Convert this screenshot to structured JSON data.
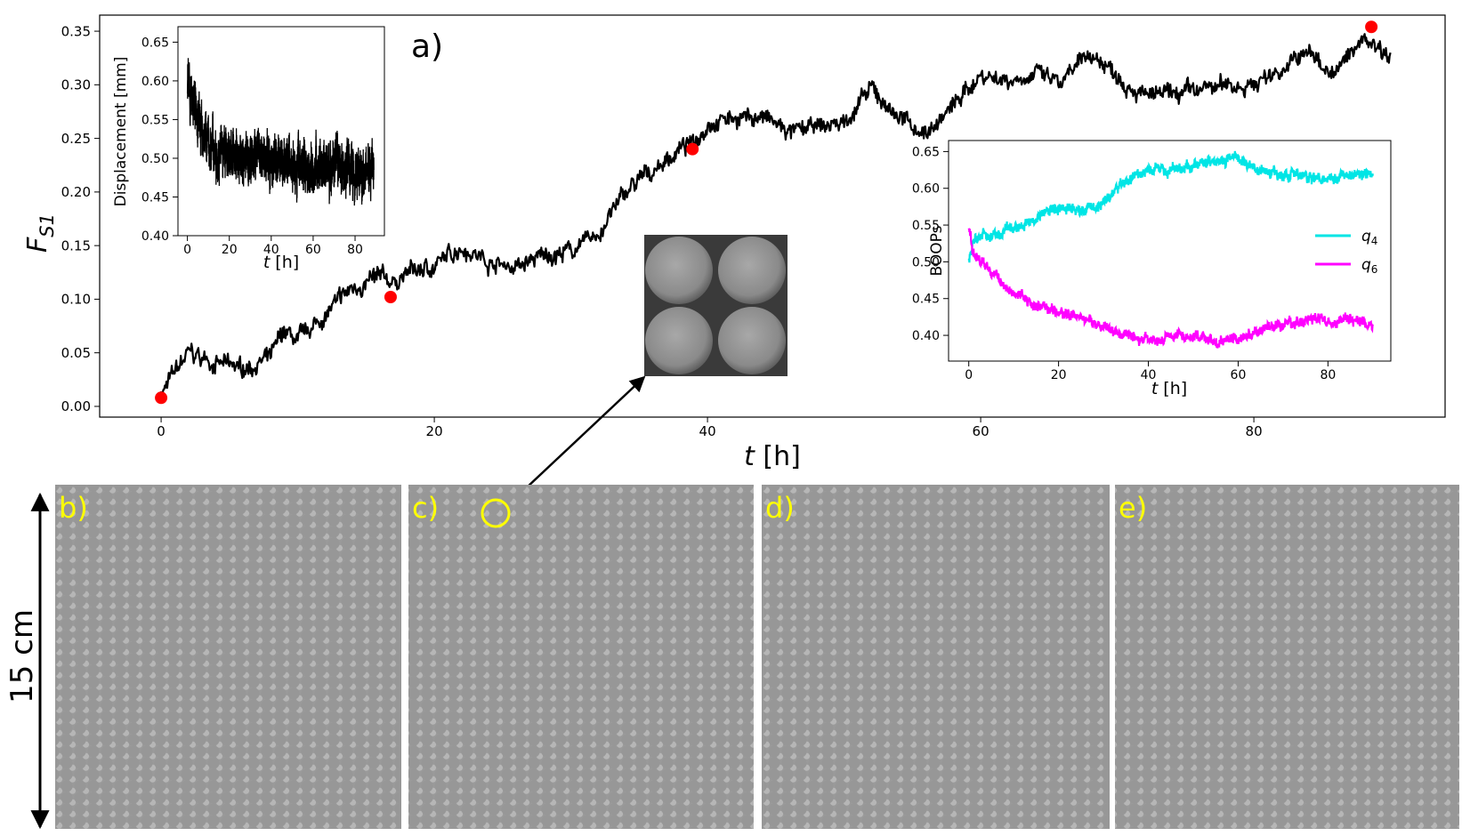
{
  "chart_data": [
    {
      "id": "main",
      "type": "line",
      "panel_label": "a)",
      "title": "",
      "xlabel_var": "t",
      "xlabel_unit": " [h]",
      "ylabel_var": "F",
      "ylabel_sub": "S1",
      "xlim": [
        -4.5,
        94
      ],
      "ylim": [
        -0.01,
        0.365
      ],
      "xticks": [
        0,
        20,
        40,
        60,
        80
      ],
      "xtick_labels": [
        "0",
        "20",
        "40",
        "60",
        "80"
      ],
      "yticks": [
        0.0,
        0.05,
        0.1,
        0.15,
        0.2,
        0.25,
        0.3,
        0.35
      ],
      "ytick_labels": [
        "0.00",
        "0.05",
        "0.10",
        "0.15",
        "0.20",
        "0.25",
        "0.30",
        "0.35"
      ],
      "series": [
        {
          "name": "F_S1",
          "color": "#000000",
          "x": [
            0,
            2,
            4,
            6,
            8,
            9,
            10,
            12,
            14,
            16,
            17,
            18,
            20,
            21,
            22,
            24,
            26,
            28,
            30,
            32,
            34,
            36,
            38,
            39,
            40,
            42,
            44,
            46,
            48,
            50,
            52,
            54,
            56,
            58,
            60,
            62,
            64,
            66,
            68,
            70,
            72,
            74,
            76,
            78,
            80,
            82,
            84,
            86,
            88,
            90
          ],
          "y": [
            0.012,
            0.05,
            0.04,
            0.035,
            0.045,
            0.07,
            0.06,
            0.085,
            0.11,
            0.12,
            0.115,
            0.125,
            0.13,
            0.14,
            0.15,
            0.135,
            0.13,
            0.14,
            0.145,
            0.16,
            0.2,
            0.22,
            0.24,
            0.245,
            0.265,
            0.27,
            0.27,
            0.255,
            0.26,
            0.265,
            0.295,
            0.27,
            0.255,
            0.28,
            0.31,
            0.305,
            0.31,
            0.3,
            0.33,
            0.31,
            0.29,
            0.29,
            0.295,
            0.3,
            0.3,
            0.315,
            0.33,
            0.31,
            0.345,
            0.33
          ],
          "noise": 0.012
        },
        {
          "name": "markers",
          "color": "#ff0000",
          "x": [
            0,
            16.8,
            38.9,
            88.6
          ],
          "y": [
            0.008,
            0.102,
            0.24,
            0.354
          ]
        }
      ]
    },
    {
      "id": "inset_displacement",
      "type": "line",
      "title": "",
      "xlabel_var": "t",
      "xlabel_unit": " [h]",
      "ylabel": "Displacement [mm]",
      "xlim": [
        -4.5,
        94
      ],
      "ylim": [
        0.4,
        0.67
      ],
      "xticks": [
        0,
        20,
        40,
        60,
        80
      ],
      "xtick_labels": [
        "0",
        "20",
        "40",
        "60",
        "80"
      ],
      "yticks": [
        0.4,
        0.45,
        0.5,
        0.55,
        0.6,
        0.65
      ],
      "ytick_labels": [
        "0.40",
        "0.45",
        "0.50",
        "0.55",
        "0.60",
        "0.65"
      ],
      "series": [
        {
          "name": "Displacement",
          "color": "#000000",
          "x": [
            0,
            1,
            2,
            4,
            6,
            8,
            10,
            12,
            15,
            20,
            30,
            40,
            50,
            60,
            70,
            80,
            89
          ],
          "y": [
            0.6,
            0.58,
            0.57,
            0.56,
            0.545,
            0.53,
            0.52,
            0.515,
            0.51,
            0.505,
            0.5,
            0.498,
            0.495,
            0.49,
            0.488,
            0.486,
            0.485
          ],
          "noise": 0.045
        }
      ]
    },
    {
      "id": "inset_boops",
      "type": "line",
      "title": "",
      "xlabel_var": "t",
      "xlabel_unit": " [h]",
      "ylabel": "BOOPs",
      "xlim": [
        -4.5,
        94
      ],
      "ylim": [
        0.365,
        0.665
      ],
      "xticks": [
        0,
        20,
        40,
        60,
        80
      ],
      "xtick_labels": [
        "0",
        "20",
        "40",
        "60",
        "80"
      ],
      "yticks": [
        0.4,
        0.45,
        0.5,
        0.55,
        0.6,
        0.65
      ],
      "ytick_labels": [
        "0.40",
        "0.45",
        "0.50",
        "0.55",
        "0.60",
        "0.65"
      ],
      "legend_position": "center-right",
      "series": [
        {
          "name": "q",
          "sub": "4",
          "color": "#00e5e5",
          "x": [
            0,
            1,
            3,
            6,
            10,
            15,
            20,
            25,
            30,
            35,
            40,
            45,
            50,
            55,
            60,
            65,
            70,
            75,
            80,
            85,
            90
          ],
          "y": [
            0.5,
            0.53,
            0.535,
            0.535,
            0.545,
            0.56,
            0.575,
            0.57,
            0.58,
            0.61,
            0.625,
            0.625,
            0.63,
            0.64,
            0.64,
            0.625,
            0.62,
            0.615,
            0.615,
            0.62,
            0.62
          ],
          "noise": 0.011
        },
        {
          "name": "q",
          "sub": "6",
          "color": "#ff00ff",
          "x": [
            0,
            1,
            3,
            6,
            10,
            15,
            20,
            25,
            30,
            35,
            40,
            45,
            50,
            55,
            60,
            65,
            70,
            75,
            80,
            85,
            90
          ],
          "y": [
            0.55,
            0.51,
            0.5,
            0.48,
            0.46,
            0.44,
            0.43,
            0.425,
            0.41,
            0.4,
            0.395,
            0.4,
            0.4,
            0.39,
            0.395,
            0.405,
            0.415,
            0.42,
            0.42,
            0.42,
            0.415
          ],
          "noise": 0.011
        }
      ]
    }
  ],
  "images": [
    {
      "id": "b",
      "label": "b)"
    },
    {
      "id": "c",
      "label": "c)"
    },
    {
      "id": "d",
      "label": "d)"
    },
    {
      "id": "e",
      "label": "e)"
    }
  ],
  "scale_bar": {
    "label": "15 cm"
  },
  "colors": {
    "label_yellow": "#ffff00",
    "marker_red": "#ff0000"
  }
}
